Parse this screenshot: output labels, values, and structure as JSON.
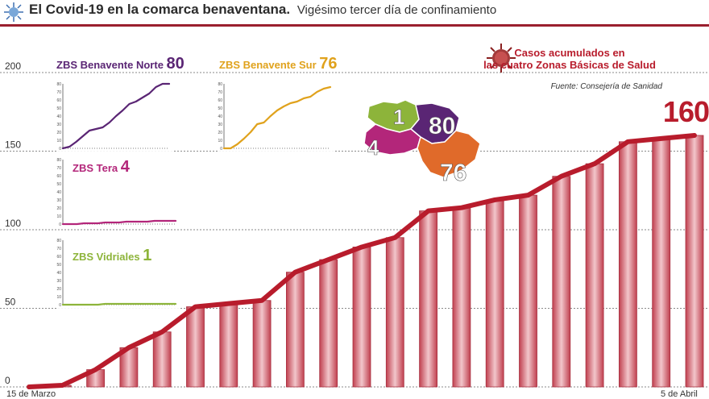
{
  "header": {
    "title": "El Covid-19 en la comarca benaventana.",
    "subtitle": "Vigésimo tercer día de confinamiento"
  },
  "credit": {
    "line1": "Casos acumulados en",
    "line2": "las cuatro Zonas Básicas de Salud",
    "source": "Fuente: Consejería de Sanidad"
  },
  "colors": {
    "main": "#b81c2c",
    "bar_fill": "#e4a5ad",
    "norte": "#5a2574",
    "sur": "#e0a21c",
    "tera": "#b3267a",
    "vidriales": "#8db43a"
  },
  "chart_data": [
    {
      "type": "bar",
      "title": "Casos acumulados en las cuatro Zonas Básicas de Salud",
      "x_start_label": "15 de Marzo",
      "x_end_label": "5 de Abril",
      "y_ticks": [
        "0",
        "50",
        "100",
        "150",
        "200"
      ],
      "ylim": [
        0,
        200
      ],
      "grid": true,
      "values": [
        0,
        1,
        11,
        25,
        35,
        51,
        53,
        55,
        73,
        81,
        89,
        95,
        112,
        114,
        119,
        122,
        134,
        142,
        156,
        158,
        160
      ],
      "final_label": "160"
    },
    {
      "type": "line",
      "name": "ZBS Benavente Norte",
      "label_name": "ZBS Benavente Norte",
      "total": "80",
      "y_ticks": [
        "80",
        "70",
        "60",
        "50",
        "40",
        "30",
        "20",
        "10",
        "0"
      ],
      "ylim": [
        0,
        80
      ],
      "values": [
        0,
        2,
        8,
        15,
        22,
        24,
        26,
        32,
        40,
        47,
        55,
        58,
        63,
        68,
        76,
        80,
        80
      ]
    },
    {
      "type": "line",
      "name": "ZBS Benavente Sur",
      "label_name": "ZBS Benavente Sur",
      "total": "76",
      "y_ticks": [
        "80",
        "70",
        "60",
        "50",
        "40",
        "30",
        "20",
        "10",
        "0"
      ],
      "ylim": [
        0,
        80
      ],
      "values": [
        0,
        0,
        5,
        12,
        20,
        30,
        32,
        40,
        47,
        52,
        56,
        58,
        62,
        64,
        70,
        74,
        76
      ]
    },
    {
      "type": "line",
      "name": "ZBS Tera",
      "label_name": "ZBS Tera",
      "total": "4",
      "y_ticks": [
        "80",
        "70",
        "60",
        "50",
        "40",
        "30",
        "20",
        "10",
        "0"
      ],
      "ylim": [
        0,
        80
      ],
      "values": [
        0,
        0,
        0,
        1,
        1,
        1,
        2,
        2,
        2,
        3,
        3,
        3,
        3,
        4,
        4,
        4,
        4
      ]
    },
    {
      "type": "line",
      "name": "ZBS Vidriales",
      "label_name": "ZBS Vidriales",
      "total": "1",
      "y_ticks": [
        "80",
        "70",
        "60",
        "50",
        "40",
        "30",
        "20",
        "10",
        "0"
      ],
      "ylim": [
        0,
        80
      ],
      "values": [
        0,
        0,
        0,
        0,
        0,
        0,
        1,
        1,
        1,
        1,
        1,
        1,
        1,
        1,
        1,
        1,
        1
      ]
    }
  ],
  "map": {
    "labels": [
      "1",
      "80",
      "4",
      "76"
    ]
  }
}
